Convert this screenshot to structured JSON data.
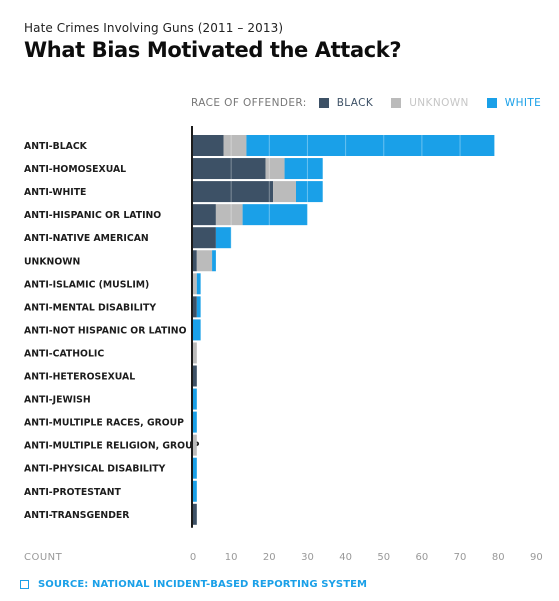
{
  "header": {
    "subtitle": "Hate Crimes Involving Guns (2011 – 2013)",
    "title": "What Bias Motivated the Attack?"
  },
  "legend": {
    "title": "RACE OF OFFENDER:",
    "items": [
      {
        "label": "BLACK",
        "color": "#3d5166"
      },
      {
        "label": "UNKNOWN",
        "color": "#bbbbbb"
      },
      {
        "label": "WHITE",
        "color": "#1aa0e8"
      }
    ]
  },
  "source": {
    "text": "SOURCE: NATIONAL INCIDENT-BASED REPORTING SYSTEM",
    "icon": "square-outline-icon"
  },
  "chart_data": {
    "type": "bar",
    "orientation": "horizontal",
    "stacked": true,
    "title": "What Bias Motivated the Attack?",
    "xlabel": "COUNT",
    "ylabel": "",
    "xlim": [
      0,
      90
    ],
    "xticks": [
      0,
      10,
      20,
      30,
      40,
      50,
      60,
      70,
      80,
      90
    ],
    "grid": false,
    "legend_position": "top",
    "categories": [
      "ANTI-BLACK",
      "ANTI-HOMOSEXUAL",
      "ANTI-WHITE",
      "ANTI-HISPANIC OR LATINO",
      "ANTI-NATIVE AMERICAN",
      "UNKNOWN",
      "ANTI-ISLAMIC (MUSLIM)",
      "ANTI-MENTAL DISABILITY",
      "ANTI-NOT HISPANIC OR LATINO",
      "ANTI-CATHOLIC",
      "ANTI-HETEROSEXUAL",
      "ANTI-JEWISH",
      "ANTI-MULTIPLE RACES, GROUP",
      "ANTI-MULTIPLE RELIGION, GROUP",
      "ANTI-PHYSICAL DISABILITY",
      "ANTI-PROTESTANT",
      "ANTI-TRANSGENDER"
    ],
    "series": [
      {
        "name": "BLACK",
        "color": "#3d5166",
        "values": [
          8,
          19,
          21,
          6,
          6,
          1,
          0,
          1,
          0,
          0,
          1,
          0,
          0,
          0,
          0,
          0,
          1
        ]
      },
      {
        "name": "UNKNOWN",
        "color": "#bbbbbb",
        "values": [
          6,
          5,
          6,
          7,
          0,
          4,
          1,
          0,
          0,
          1,
          0,
          0,
          0,
          1,
          0,
          0,
          0
        ]
      },
      {
        "name": "WHITE",
        "color": "#1aa0e8",
        "values": [
          65,
          10,
          7,
          17,
          4,
          1,
          1,
          1,
          2,
          0,
          0,
          1,
          1,
          0,
          1,
          1,
          0
        ]
      }
    ]
  }
}
